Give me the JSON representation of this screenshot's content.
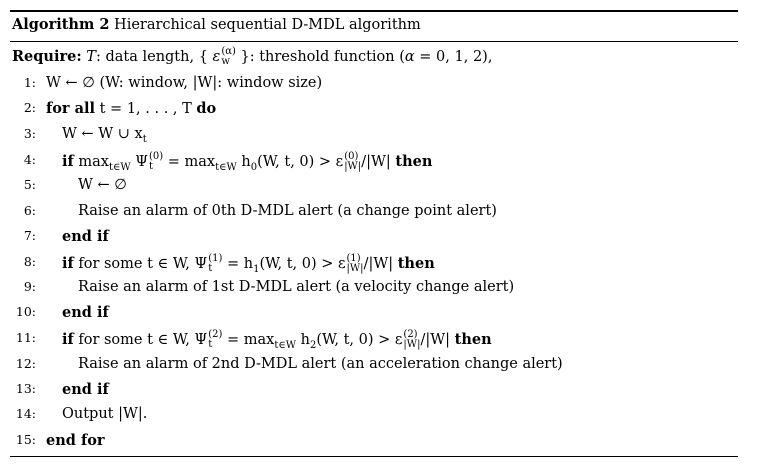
{
  "caption": {
    "label": "Algorithm 2",
    "title": "Hierarchical sequential D-MDL algorithm"
  },
  "require": {
    "keyword": "Require:",
    "text_a": "T",
    "text_b": ": data length, {",
    "eps": "ε",
    "eps_sup": "(α)",
    "eps_sub": "w",
    "text_c": "}: threshold function (",
    "alpha": "α",
    "text_d": " = 0, 1, 2),"
  },
  "lines": [
    {
      "num": "1:",
      "text": "W ← ∅ (W: window, |W|: window size)"
    },
    {
      "num": "2:",
      "kw1": "for all",
      "text": " t = 1, . . . , T ",
      "kw2": "do"
    },
    {
      "num": "3:",
      "text": "W ← W ∪ x",
      "sub": "t"
    },
    {
      "num": "4:",
      "kw1": "if",
      "text": "max",
      "text_sub": "t∈W",
      "psi": "Ψ",
      "psi_sup": "(0)",
      "psi_sub": "t",
      "text2": " = max",
      "text2_sub": "t∈W",
      "text3": " h",
      "h_sub": "0",
      "text4": "(W, t, 0) > ε",
      "eps_top": "(0)",
      "eps_bot": "|W|",
      "text5": "/|W| ",
      "kw2": "then"
    },
    {
      "num": "5:",
      "text": "W ← ∅"
    },
    {
      "num": "6:",
      "text": "Raise an alarm of 0th D-MDL alert (a change point alert)"
    },
    {
      "num": "7:",
      "kw1": "end if"
    },
    {
      "num": "8:",
      "kw1": "if",
      "text": " for some t ∈ W, Ψ",
      "psi_sup": "(1)",
      "psi_sub": "t",
      "text2": " = h",
      "h_sub": "1",
      "text3": "(W, t, 0) > ε",
      "eps_top": "(1)",
      "eps_bot": "|W|",
      "text4": "/|W| ",
      "kw2": "then"
    },
    {
      "num": "9:",
      "text": "Raise an alarm of 1st D-MDL alert (a velocity change alert)"
    },
    {
      "num": "10:",
      "kw1": "end if"
    },
    {
      "num": "11:",
      "kw1": "if",
      "text": " for some t ∈ W, Ψ",
      "psi_sup": "(2)",
      "psi_sub": "t",
      "text2": " = max",
      "text2_sub": "t∈W",
      "text3": " h",
      "h_sub": "2",
      "text4": "(W, t, 0) > ε",
      "eps_top": "(2)",
      "eps_bot": "|W|",
      "text5": "/|W| ",
      "kw2": "then"
    },
    {
      "num": "12:",
      "text": "Raise an alarm of 2nd D-MDL alert (an acceleration change alert)"
    },
    {
      "num": "13:",
      "kw1": "end if"
    },
    {
      "num": "14:",
      "text": "Output |W|."
    },
    {
      "num": "15:",
      "kw1": "end for"
    }
  ]
}
